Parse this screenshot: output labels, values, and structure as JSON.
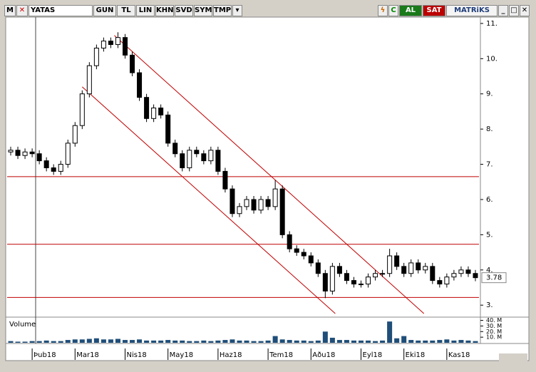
{
  "toolbar": {
    "logo": "M",
    "symbol": "YATAS",
    "buttons": [
      "GUN",
      "TL",
      "LIN",
      "KHN",
      "SVD",
      "SYM",
      "TMP"
    ],
    "refresh": "C",
    "buy": "AL",
    "sell": "SAT",
    "brand": "MATRiKS"
  },
  "chart_data": [
    {
      "type": "candlestick",
      "x": [
        0,
        1,
        2,
        3,
        4,
        5,
        6,
        7,
        8,
        9,
        10,
        11,
        12,
        13,
        14,
        15,
        16,
        17,
        18,
        19,
        20,
        21,
        22,
        23,
        24,
        25,
        26,
        27,
        28,
        29,
        30,
        31,
        32,
        33,
        34,
        35,
        36,
        37,
        38,
        39,
        40,
        41,
        42,
        43,
        44,
        45,
        46,
        47,
        48,
        49,
        50,
        51,
        52,
        53,
        54,
        55,
        56,
        57,
        58,
        59,
        60,
        61,
        62,
        63,
        64,
        65
      ],
      "open": [
        7.35,
        7.4,
        7.25,
        7.35,
        7.3,
        7.1,
        6.9,
        6.8,
        7.0,
        7.6,
        8.1,
        9.0,
        9.8,
        10.3,
        10.5,
        10.4,
        10.6,
        10.1,
        9.6,
        8.9,
        8.3,
        8.6,
        8.4,
        7.6,
        7.3,
        6.9,
        7.4,
        7.3,
        7.1,
        7.4,
        6.8,
        6.3,
        5.6,
        5.8,
        6.0,
        5.7,
        6.0,
        5.8,
        6.3,
        5.0,
        4.6,
        4.5,
        4.4,
        4.2,
        3.9,
        3.4,
        4.1,
        3.9,
        3.7,
        3.6,
        3.6,
        3.8,
        3.9,
        3.9,
        4.4,
        4.1,
        3.9,
        4.2,
        4.0,
        4.1,
        3.7,
        3.6,
        3.8,
        3.9,
        4.0,
        3.9
      ],
      "high": [
        7.5,
        7.5,
        7.45,
        7.45,
        7.4,
        7.2,
        7.0,
        7.1,
        7.7,
        8.2,
        9.1,
        9.9,
        10.4,
        10.6,
        10.6,
        10.75,
        10.7,
        10.2,
        9.7,
        9.0,
        8.7,
        8.7,
        8.5,
        7.7,
        7.4,
        7.5,
        7.5,
        7.4,
        7.5,
        7.5,
        6.9,
        6.4,
        5.9,
        6.1,
        6.1,
        6.1,
        6.1,
        6.55,
        6.4,
        5.1,
        4.7,
        4.6,
        4.5,
        4.3,
        4.0,
        4.2,
        4.2,
        4.0,
        3.8,
        3.7,
        3.9,
        4.0,
        4.0,
        4.6,
        4.5,
        4.2,
        4.3,
        4.3,
        4.2,
        4.2,
        3.8,
        3.9,
        4.0,
        4.1,
        4.1,
        4.0
      ],
      "low": [
        7.25,
        7.15,
        7.15,
        7.2,
        7.0,
        6.8,
        6.7,
        6.7,
        6.9,
        7.5,
        8.0,
        8.9,
        9.7,
        10.2,
        10.3,
        10.3,
        10.0,
        9.5,
        8.8,
        8.2,
        8.2,
        8.3,
        7.5,
        7.2,
        6.8,
        6.8,
        7.2,
        7.0,
        7.0,
        6.7,
        6.2,
        5.5,
        5.5,
        5.7,
        5.6,
        5.6,
        5.7,
        5.7,
        4.9,
        4.5,
        4.4,
        4.3,
        4.1,
        3.8,
        3.2,
        3.3,
        3.8,
        3.6,
        3.5,
        3.5,
        3.5,
        3.7,
        3.8,
        3.8,
        4.0,
        3.8,
        3.8,
        3.9,
        3.9,
        3.6,
        3.5,
        3.5,
        3.7,
        3.8,
        3.8,
        3.68
      ],
      "close": [
        7.4,
        7.25,
        7.35,
        7.3,
        7.1,
        6.9,
        6.8,
        7.0,
        7.6,
        8.1,
        9.0,
        9.8,
        10.3,
        10.5,
        10.4,
        10.6,
        10.1,
        9.6,
        8.9,
        8.3,
        8.6,
        8.4,
        7.6,
        7.3,
        6.9,
        7.4,
        7.3,
        7.1,
        7.4,
        6.8,
        6.3,
        5.6,
        5.8,
        6.0,
        5.7,
        6.0,
        5.8,
        6.3,
        5.0,
        4.6,
        4.5,
        4.4,
        4.2,
        3.9,
        3.4,
        4.1,
        3.9,
        3.7,
        3.6,
        3.6,
        3.8,
        3.9,
        3.9,
        4.4,
        4.1,
        3.9,
        4.2,
        4.0,
        4.1,
        3.7,
        3.6,
        3.8,
        3.9,
        4.0,
        3.9,
        3.78
      ],
      "xlim": [
        -0.5,
        65.5
      ],
      "xticks": [
        {
          "value": 3,
          "label": "Þub18"
        },
        {
          "value": 9,
          "label": "Mar18"
        },
        {
          "value": 16,
          "label": "Nis18"
        },
        {
          "value": 22,
          "label": "May18"
        },
        {
          "value": 29,
          "label": "Haz18"
        },
        {
          "value": 36,
          "label": "Tem18"
        },
        {
          "value": 42,
          "label": "Aðu18"
        },
        {
          "value": 49,
          "label": "Eyl18"
        },
        {
          "value": 55,
          "label": "Eki18"
        },
        {
          "value": 61,
          "label": "Kas18"
        }
      ],
      "ylim": [
        2.66,
        11.18
      ],
      "yticks": [
        {
          "value": 3,
          "label": "3."
        },
        {
          "value": 4,
          "label": "4."
        },
        {
          "value": 5,
          "label": "5."
        },
        {
          "value": 6,
          "label": "6."
        },
        {
          "value": 7,
          "label": "7."
        },
        {
          "value": 8,
          "label": "8."
        },
        {
          "value": 9,
          "label": "9."
        },
        {
          "value": 10,
          "label": "10."
        },
        {
          "value": 11,
          "label": "11."
        }
      ],
      "last_price": 3.78,
      "hlines": [
        6.65,
        4.73,
        3.22
      ],
      "trendlines": [
        {
          "x": [
            14.5,
            57.8
          ],
          "y": [
            10.66,
            2.76
          ]
        },
        {
          "x": [
            10,
            45.4
          ],
          "y": [
            9.2,
            2.76
          ]
        }
      ],
      "line_color": "#c00000"
    },
    {
      "type": "bar",
      "title": "Volume",
      "color": "#1f4e79",
      "values": [
        3,
        2,
        2,
        3,
        3,
        4,
        3,
        3,
        5,
        6,
        6,
        7,
        8,
        6,
        6,
        7,
        5,
        5,
        6,
        4,
        4,
        4,
        5,
        4,
        4,
        3,
        3,
        4,
        3,
        4,
        5,
        6,
        4,
        4,
        3,
        3,
        4,
        12,
        6,
        5,
        4,
        4,
        3,
        4,
        20,
        9,
        5,
        5,
        4,
        4,
        4,
        3,
        4,
        38,
        8,
        12,
        5,
        4,
        4,
        4,
        5,
        6,
        4,
        5,
        4,
        3
      ],
      "ylim": [
        0,
        42
      ],
      "yticks": [
        {
          "value": 10,
          "label": "10. M"
        },
        {
          "value": 20,
          "label": "20. M"
        },
        {
          "value": 30,
          "label": "30. M"
        },
        {
          "value": 40,
          "label": "40. M"
        }
      ]
    }
  ]
}
